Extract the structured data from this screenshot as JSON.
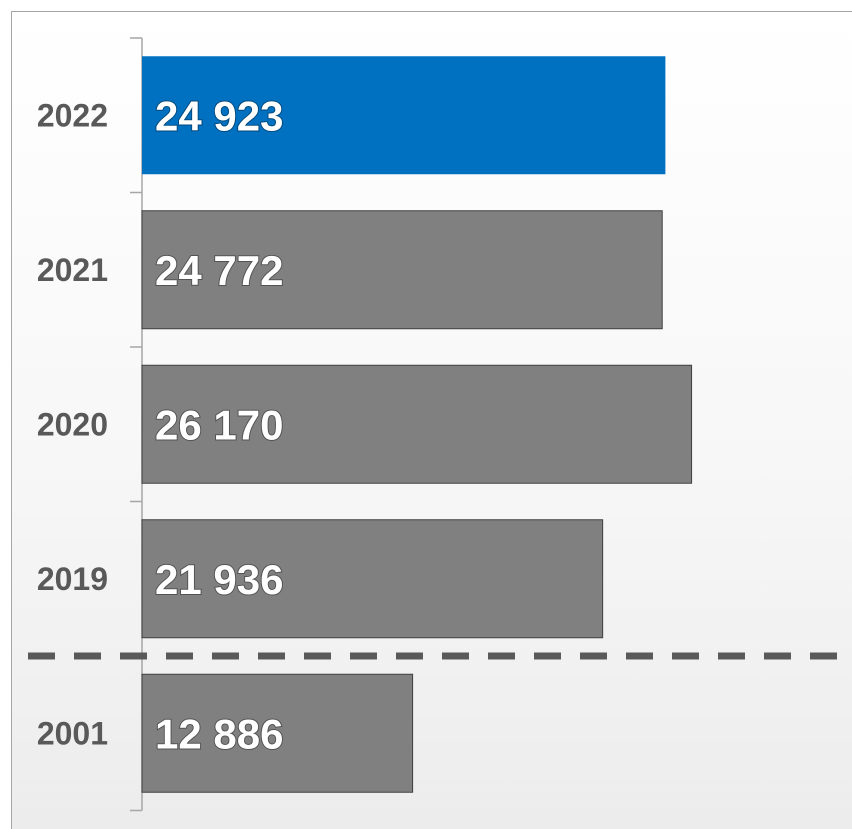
{
  "chart_data": {
    "type": "bar",
    "orientation": "horizontal",
    "categories": [
      "2022",
      "2021",
      "2020",
      "2019",
      "2001"
    ],
    "values": [
      24923,
      24772,
      26170,
      21936,
      12886
    ],
    "value_labels": [
      "24 923",
      "24 772",
      "26 170",
      "21 936",
      "12 886"
    ],
    "xlim": [
      0,
      30000
    ],
    "grid": false,
    "legend": "none",
    "separator": "dashed line between 2019 and 2001"
  },
  "colors": {
    "highlight": "#0070c0",
    "bar": "#808080",
    "separator": "#595959"
  }
}
